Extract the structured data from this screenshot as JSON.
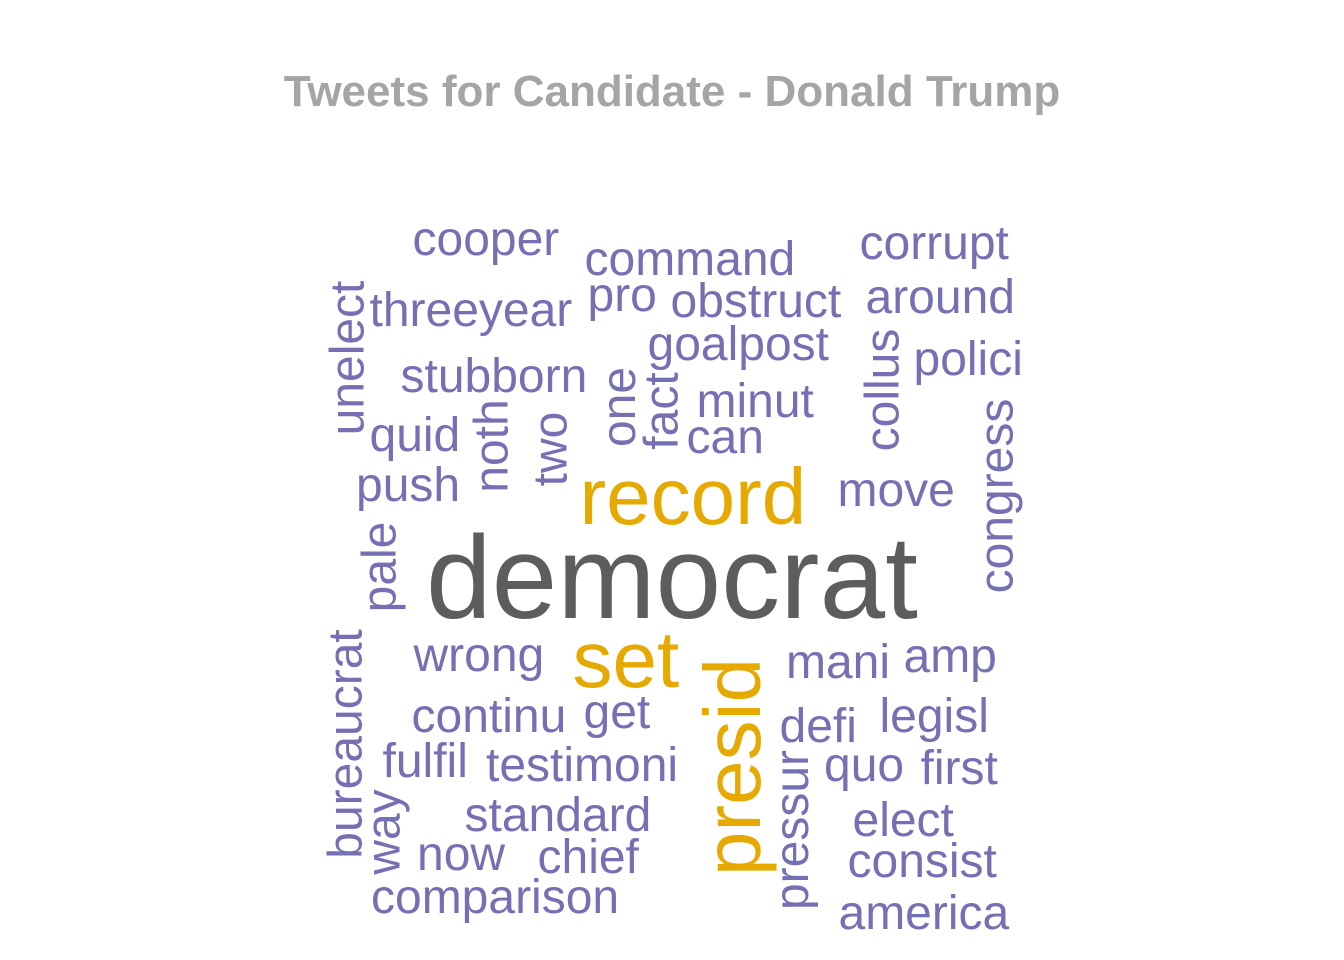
{
  "title": "Tweets for Candidate - Donald Trump",
  "colors": {
    "low": "#7570b3",
    "mid": "#e6a900",
    "high": "#5d5d5d",
    "title": "#a5a5a5"
  },
  "chart_data": {
    "type": "wordcloud",
    "title": "Tweets for Candidate - Donald Trump",
    "words": [
      {
        "text": "democrat",
        "size": 118,
        "tier": "high",
        "rotate": false
      },
      {
        "text": "record",
        "size": 80,
        "tier": "mid",
        "rotate": false
      },
      {
        "text": "set",
        "size": 80,
        "tier": "mid",
        "rotate": false
      },
      {
        "text": "presid",
        "size": 80,
        "tier": "mid",
        "rotate": true
      },
      {
        "text": "cooper",
        "size": 48,
        "tier": "low",
        "rotate": false
      },
      {
        "text": "command",
        "size": 48,
        "tier": "low",
        "rotate": false
      },
      {
        "text": "corrupt",
        "size": 48,
        "tier": "low",
        "rotate": false
      },
      {
        "text": "threeyear",
        "size": 48,
        "tier": "low",
        "rotate": false
      },
      {
        "text": "pro",
        "size": 48,
        "tier": "low",
        "rotate": false
      },
      {
        "text": "obstruct",
        "size": 48,
        "tier": "low",
        "rotate": false
      },
      {
        "text": "around",
        "size": 48,
        "tier": "low",
        "rotate": false
      },
      {
        "text": "unelect",
        "size": 48,
        "tier": "low",
        "rotate": true
      },
      {
        "text": "goalpost",
        "size": 48,
        "tier": "low",
        "rotate": false
      },
      {
        "text": "stubborn",
        "size": 48,
        "tier": "low",
        "rotate": false
      },
      {
        "text": "one",
        "size": 48,
        "tier": "low",
        "rotate": true
      },
      {
        "text": "fact",
        "size": 48,
        "tier": "low",
        "rotate": true
      },
      {
        "text": "collus",
        "size": 48,
        "tier": "low",
        "rotate": true
      },
      {
        "text": "polici",
        "size": 48,
        "tier": "low",
        "rotate": false
      },
      {
        "text": "minut",
        "size": 48,
        "tier": "low",
        "rotate": false
      },
      {
        "text": "quid",
        "size": 48,
        "tier": "low",
        "rotate": false
      },
      {
        "text": "noth",
        "size": 48,
        "tier": "low",
        "rotate": true
      },
      {
        "text": "two",
        "size": 48,
        "tier": "low",
        "rotate": true
      },
      {
        "text": "can",
        "size": 48,
        "tier": "low",
        "rotate": false
      },
      {
        "text": "congress",
        "size": 48,
        "tier": "low",
        "rotate": true
      },
      {
        "text": "push",
        "size": 48,
        "tier": "low",
        "rotate": false
      },
      {
        "text": "move",
        "size": 48,
        "tier": "low",
        "rotate": false
      },
      {
        "text": "pale",
        "size": 48,
        "tier": "low",
        "rotate": true
      },
      {
        "text": "wrong",
        "size": 48,
        "tier": "low",
        "rotate": false
      },
      {
        "text": "mani",
        "size": 48,
        "tier": "low",
        "rotate": false
      },
      {
        "text": "amp",
        "size": 48,
        "tier": "low",
        "rotate": false
      },
      {
        "text": "bureaucrat",
        "size": 48,
        "tier": "low",
        "rotate": true
      },
      {
        "text": "continu",
        "size": 48,
        "tier": "low",
        "rotate": false
      },
      {
        "text": "get",
        "size": 48,
        "tier": "low",
        "rotate": false
      },
      {
        "text": "defi",
        "size": 48,
        "tier": "low",
        "rotate": false
      },
      {
        "text": "legisl",
        "size": 48,
        "tier": "low",
        "rotate": false
      },
      {
        "text": "fulfil",
        "size": 48,
        "tier": "low",
        "rotate": false
      },
      {
        "text": "testimoni",
        "size": 48,
        "tier": "low",
        "rotate": false
      },
      {
        "text": "quo",
        "size": 48,
        "tier": "low",
        "rotate": false
      },
      {
        "text": "first",
        "size": 48,
        "tier": "low",
        "rotate": false
      },
      {
        "text": "way",
        "size": 48,
        "tier": "low",
        "rotate": true
      },
      {
        "text": "standard",
        "size": 48,
        "tier": "low",
        "rotate": false
      },
      {
        "text": "pressur",
        "size": 48,
        "tier": "low",
        "rotate": true
      },
      {
        "text": "elect",
        "size": 48,
        "tier": "low",
        "rotate": false
      },
      {
        "text": "now",
        "size": 48,
        "tier": "low",
        "rotate": false
      },
      {
        "text": "chief",
        "size": 48,
        "tier": "low",
        "rotate": false
      },
      {
        "text": "consist",
        "size": 48,
        "tier": "low",
        "rotate": false
      },
      {
        "text": "comparison",
        "size": 48,
        "tier": "low",
        "rotate": false
      },
      {
        "text": "america",
        "size": 48,
        "tier": "low",
        "rotate": false
      }
    ]
  }
}
